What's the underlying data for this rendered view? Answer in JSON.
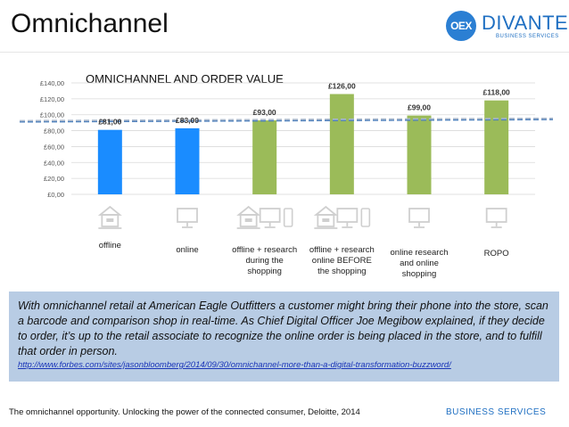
{
  "header": {
    "title": "Omnichannel",
    "logo_mark": "OEX",
    "logo_name": "DIVANTE",
    "logo_sub": "BUSINESS SERVICES"
  },
  "chart_data": {
    "type": "bar",
    "title": "OMNICHANNEL AND ORDER VALUE",
    "categories": [
      "offline",
      "online",
      "offline + research during the shopping",
      "offline + research online BEFORE the shopping",
      "online research and online shopping",
      "ROPO"
    ],
    "category_lines": [
      [
        "offline"
      ],
      [
        "online"
      ],
      [
        "offline + research",
        "during the",
        "shopping"
      ],
      [
        "offline + research",
        "online BEFORE",
        "the shopping"
      ],
      [
        "online research",
        "and online",
        "shopping"
      ],
      [
        "ROPO"
      ]
    ],
    "values": [
      81,
      83,
      93,
      126,
      99,
      118
    ],
    "data_labels": [
      "£81,00",
      "£83,00",
      "£93,00",
      "£126,00",
      "£99,00",
      "£118,00"
    ],
    "bar_colors": [
      "#1a8cff",
      "#1a8cff",
      "#9bbb59",
      "#9bbb59",
      "#9bbb59",
      "#9bbb59"
    ],
    "y_ticks": [
      0,
      20,
      40,
      60,
      80,
      100,
      120,
      140
    ],
    "y_tick_labels": [
      "£0,00",
      "£20,00",
      "£40,00",
      "£60,00",
      "£80,00",
      "£100,00",
      "£120,00",
      "£140,00"
    ],
    "ylim": [
      0,
      140
    ],
    "grid": true,
    "trend_lines": [
      {
        "name": "average trend",
        "start": 91,
        "end": 94,
        "color": "#4f81bd"
      },
      {
        "name": "average trend light",
        "start": 92.5,
        "end": 95.5,
        "color": "#a9b8cc"
      }
    ],
    "icons": [
      "store",
      "monitor",
      "store+monitor+phone",
      "store+monitor+phone",
      "monitor",
      "monitor"
    ]
  },
  "quote": {
    "text": "With omnichannel retail at American Eagle Outfitters a customer might bring their phone into the store, scan a barcode and comparison shop in real-time. As Chief Digital Officer Joe Megibow explained, if they decide to order, it’s up to the retail associate to recognize the online order is being placed in the store, and to fulfill that order in person.",
    "link": "http://www.forbes.com/sites/jasonbloomberg/2014/09/30/omnichannel-more-than-a-digital-transformation-buzzword/"
  },
  "footer": {
    "source": "The omnichannel opportunity. Unlocking the power of the connected consumer, Deloitte, 2014",
    "brand": "BUSINESS SERVICES"
  },
  "colors": {
    "accent": "#1f6fc2",
    "quote_bg": "#b8cce4"
  }
}
